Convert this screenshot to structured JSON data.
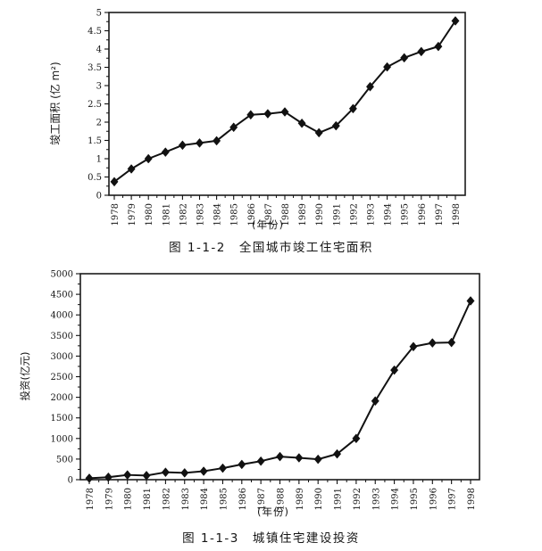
{
  "figures": [
    {
      "caption": "图 1-1-2　全国城市竣工住宅面积"
    },
    {
      "caption": "图 1-1-3　城镇住宅建设投资"
    }
  ],
  "chart_data": [
    {
      "type": "line",
      "title": "全国城市竣工住宅面积",
      "xlabel": "(年份)",
      "ylabel": "竣工面积 (亿 m²)",
      "x": [
        "1978",
        "1979",
        "1980",
        "1981",
        "1982",
        "1983",
        "1984",
        "1985",
        "1986",
        "1987",
        "1988",
        "1989",
        "1990",
        "1991",
        "1992",
        "1993",
        "1994",
        "1995",
        "1996",
        "1997",
        "1998"
      ],
      "values": [
        0.37,
        0.72,
        1.0,
        1.18,
        1.37,
        1.43,
        1.49,
        1.86,
        2.2,
        2.23,
        2.28,
        1.97,
        1.71,
        1.9,
        2.37,
        2.97,
        3.51,
        3.76,
        3.93,
        4.07,
        4.77
      ],
      "ylim": [
        0,
        5
      ],
      "ytick_labels": [
        "0",
        "0.5",
        "1",
        "1.5",
        "2",
        "2.5",
        "3",
        "3.5",
        "4",
        "4.5",
        "5"
      ],
      "marker": "diamond",
      "line_color": "#111111",
      "grid": false,
      "legend": "none"
    },
    {
      "type": "line",
      "title": "城镇住宅建设投资",
      "xlabel": "(年份)",
      "ylabel": "投资(亿元)",
      "x": [
        "1978",
        "1979",
        "1980",
        "1981",
        "1982",
        "1983",
        "1984",
        "1985",
        "1986",
        "1987",
        "1988",
        "1989",
        "1990",
        "1991",
        "1992",
        "1993",
        "1994",
        "1995",
        "1996",
        "1997",
        "1998"
      ],
      "values": [
        35,
        60,
        115,
        100,
        180,
        165,
        205,
        280,
        370,
        450,
        560,
        530,
        495,
        625,
        1000,
        1910,
        2660,
        3230,
        3320,
        3330,
        4340
      ],
      "ylim": [
        0,
        5000
      ],
      "ytick_labels": [
        "0",
        "500",
        "1000",
        "1500",
        "2000",
        "2500",
        "3000",
        "3500",
        "4000",
        "4500",
        "5000"
      ],
      "marker": "diamond",
      "line_color": "#111111",
      "grid": false,
      "legend": "none"
    }
  ]
}
